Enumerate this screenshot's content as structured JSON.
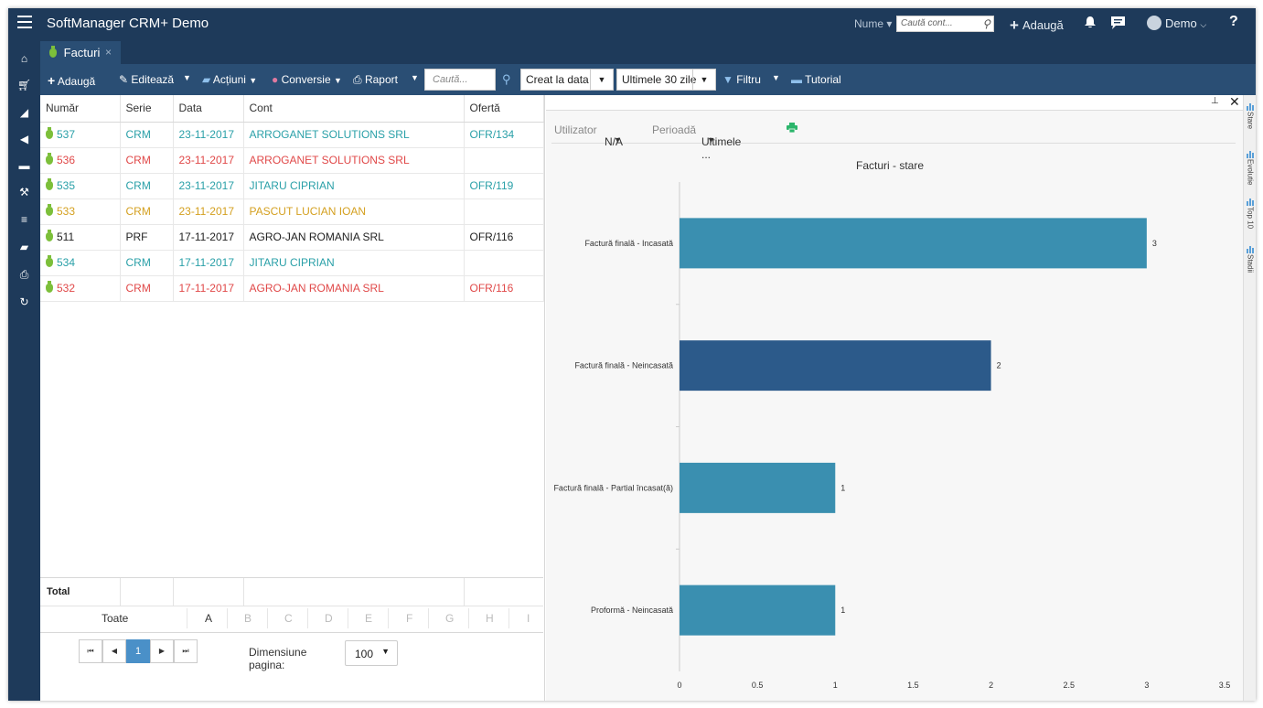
{
  "app": {
    "title": "SoftManager CRM+ Demo"
  },
  "header": {
    "nume_label": "Nume",
    "search_placeholder": "Caută cont...",
    "add_label": "Adaugă",
    "user_label": "Demo",
    "help_label": "?"
  },
  "sidebar": {
    "items": [
      "home-icon",
      "cart-icon",
      "chart-icon",
      "megaphone-icon",
      "briefcase-icon",
      "hammer-icon",
      "database-icon",
      "folder-icon",
      "printer-icon",
      "refresh-icon"
    ]
  },
  "tabs": [
    {
      "label": "Facturi",
      "close": "×"
    }
  ],
  "toolbar": {
    "add": "Adaugă",
    "edit": "Editează",
    "actions": "Acțiuni",
    "conversion": "Conversie",
    "report": "Raport",
    "search_placeholder": "Caută...",
    "created_select": "Creat la data",
    "period_select": "Ultimele 30 zile",
    "filter": "Filtru",
    "tutorial": "Tutorial"
  },
  "grid": {
    "columns": [
      "Număr",
      "Serie",
      "Data",
      "Cont",
      "Ofertă"
    ],
    "rows": [
      {
        "num": "537",
        "serie": "CRM",
        "data": "23-11-2017",
        "cont": "ARROGANET SOLUTIONS SRL",
        "oferta": "OFR/134",
        "color": "#2aa0a8"
      },
      {
        "num": "536",
        "serie": "CRM",
        "data": "23-11-2017",
        "cont": "ARROGANET SOLUTIONS SRL",
        "oferta": "",
        "color": "#e04848"
      },
      {
        "num": "535",
        "serie": "CRM",
        "data": "23-11-2017",
        "cont": "JITARU CIPRIAN",
        "oferta": "OFR/119",
        "color": "#2aa0a8"
      },
      {
        "num": "533",
        "serie": "CRM",
        "data": "23-11-2017",
        "cont": "PASCUT LUCIAN IOAN",
        "oferta": "",
        "color": "#d4a020"
      },
      {
        "num": "511",
        "serie": "PRF",
        "data": "17-11-2017",
        "cont": "AGRO-JAN ROMANIA SRL",
        "oferta": "OFR/116",
        "color": "#222222"
      },
      {
        "num": "534",
        "serie": "CRM",
        "data": "17-11-2017",
        "cont": "JITARU CIPRIAN",
        "oferta": "",
        "color": "#2aa0a8"
      },
      {
        "num": "532",
        "serie": "CRM",
        "data": "17-11-2017",
        "cont": "AGRO-JAN ROMANIA SRL",
        "oferta": "OFR/116",
        "color": "#e04848"
      }
    ],
    "total_label": "Total",
    "letters": [
      "Toate",
      "A",
      "B",
      "C",
      "D",
      "E",
      "F",
      "G",
      "H",
      "I"
    ],
    "pager": {
      "first": "⏮",
      "prev": "◀",
      "page": "1",
      "next": "▶",
      "last": "⏭",
      "size_label": "Dimensiune pagina:",
      "size_value": "100"
    }
  },
  "panel": {
    "user_label": "Utilizator",
    "user_value": "N/A",
    "period_label": "Perioadă",
    "period_value": "Ultimele ..."
  },
  "right_tabs": [
    "Stare",
    "Evolutie",
    "Top 10",
    "Stadii"
  ],
  "chart_data": {
    "type": "bar",
    "orientation": "horizontal",
    "title": "Facturi - stare",
    "categories": [
      "Factură finală - Incasată",
      "Factură finală - Neincasată",
      "Factură finală - Partial încasat(ă)",
      "Proformă - Neincasată"
    ],
    "values": [
      3,
      2,
      1,
      1
    ],
    "colors": [
      "#3a8fb0",
      "#2c5a8a",
      "#3a8fb0",
      "#3a8fb0"
    ],
    "xticks": [
      "0",
      "0.5",
      "1",
      "1.5",
      "2",
      "2.5",
      "3",
      "3.5"
    ],
    "xlim": [
      0,
      3.5
    ],
    "grid": false
  }
}
